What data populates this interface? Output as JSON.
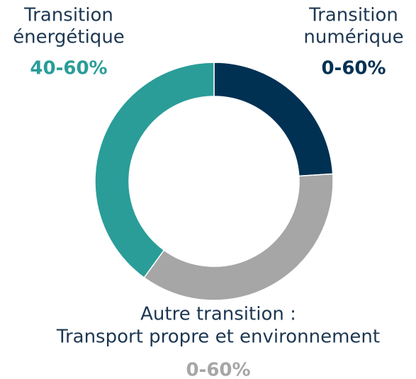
{
  "chart_data": {
    "type": "donut",
    "categories": [
      [
        "Transition",
        "numérique"
      ],
      [
        "Autre transition :",
        "Transport propre et environnement"
      ],
      [
        "Transition",
        "énergétique"
      ]
    ],
    "ranges": [
      "0-60%",
      "0-60%",
      "40-60%"
    ],
    "values": [
      24,
      36,
      40
    ],
    "colors": [
      "#003153",
      "#a6a6a6",
      "#2a9d98"
    ]
  }
}
